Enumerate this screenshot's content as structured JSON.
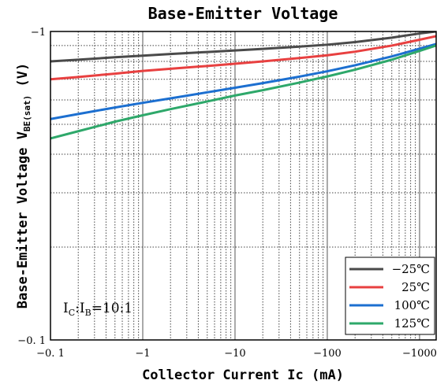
{
  "chart_data": {
    "type": "line",
    "title": "Base-Emitter Voltage",
    "xlabel": "Collector  Current Ic (mA)",
    "ylabel": {
      "main": "Base-Emitter Voltage V",
      "sub": "BE(sat)",
      "unit": "  (V)"
    },
    "x_scale": "log",
    "y_scale": "log",
    "xlim": [
      -0.1,
      -1000
    ],
    "ylim": [
      -0.1,
      -1
    ],
    "x_ticks": [
      {
        "value": -0.1,
        "label": "−0. 1"
      },
      {
        "value": -1,
        "label": "−1"
      },
      {
        "value": -10,
        "label": "−10"
      },
      {
        "value": -100,
        "label": "−100"
      },
      {
        "value": -1000,
        "label": "−1000"
      }
    ],
    "y_ticks": [
      {
        "value": -1,
        "label": "−1"
      },
      {
        "value": -0.1,
        "label": "−0. 1"
      }
    ],
    "grid": true,
    "legend_position": "bottom-right",
    "annotation": {
      "parts": [
        {
          "text": "I",
          "sub": false
        },
        {
          "text": "C",
          "sub": true
        },
        {
          "text": ":I",
          "sub": false
        },
        {
          "text": "B",
          "sub": true
        },
        {
          "text": "=10:1",
          "sub": false
        }
      ],
      "position": "bottom-left"
    },
    "series": [
      {
        "name": "−25℃",
        "color": "#4a4a4a",
        "x": [
          -0.1,
          -0.2,
          -0.5,
          -1,
          -2,
          -5,
          -10,
          -20,
          -50,
          -100,
          -200,
          -500,
          -1000,
          -1500
        ],
        "y": [
          -0.8,
          -0.81,
          -0.825,
          -0.835,
          -0.845,
          -0.858,
          -0.868,
          -0.878,
          -0.893,
          -0.906,
          -0.924,
          -0.955,
          -0.985,
          -1.0
        ]
      },
      {
        "name": "25℃",
        "color": "#e84040",
        "x": [
          -0.1,
          -0.2,
          -0.5,
          -1,
          -2,
          -5,
          -10,
          -20,
          -50,
          -100,
          -200,
          -500,
          -1000,
          -1500
        ],
        "y": [
          -0.7,
          -0.712,
          -0.73,
          -0.745,
          -0.757,
          -0.773,
          -0.786,
          -0.8,
          -0.82,
          -0.837,
          -0.86,
          -0.9,
          -0.94,
          -0.965
        ]
      },
      {
        "name": "100℃",
        "color": "#1c6fd0",
        "x": [
          -0.1,
          -0.2,
          -0.5,
          -1,
          -2,
          -5,
          -10,
          -20,
          -50,
          -100,
          -200,
          -500,
          -1000,
          -1500
        ],
        "y": [
          -0.52,
          -0.54,
          -0.567,
          -0.587,
          -0.607,
          -0.635,
          -0.657,
          -0.68,
          -0.714,
          -0.743,
          -0.777,
          -0.83,
          -0.88,
          -0.91
        ]
      },
      {
        "name": "125℃",
        "color": "#2ea86a",
        "x": [
          -0.1,
          -0.2,
          -0.5,
          -1,
          -2,
          -5,
          -10,
          -20,
          -50,
          -100,
          -200,
          -500,
          -1000,
          -1500
        ],
        "y": [
          -0.45,
          -0.475,
          -0.51,
          -0.535,
          -0.56,
          -0.593,
          -0.62,
          -0.645,
          -0.683,
          -0.715,
          -0.752,
          -0.81,
          -0.865,
          -0.9
        ]
      }
    ]
  }
}
